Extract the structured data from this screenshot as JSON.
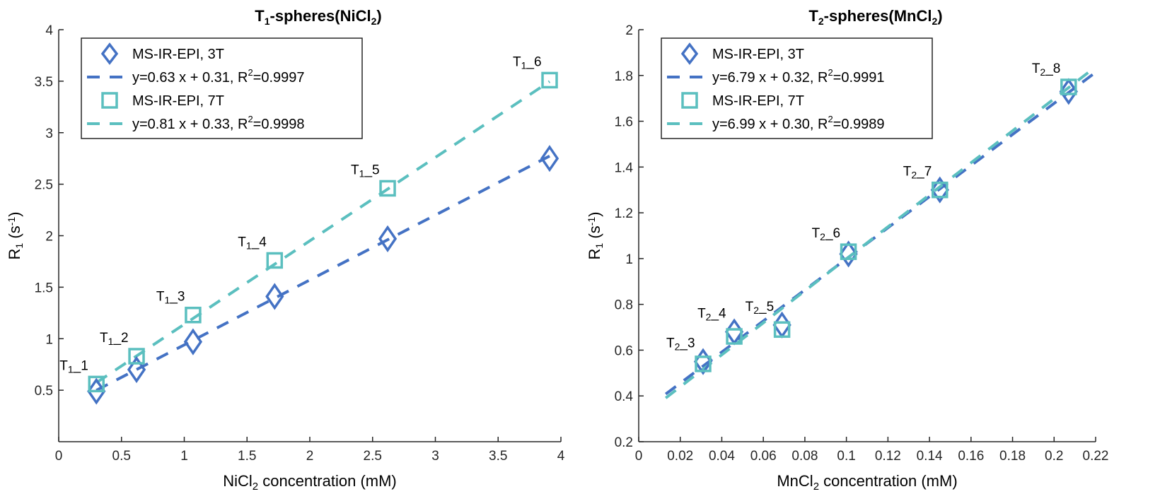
{
  "chart_data": [
    {
      "type": "scatter",
      "title": "T1-spheres(NiCl2)",
      "title_parts": {
        "pre": "T",
        "sub1": "1",
        "mid": "-spheres(NiCl",
        "sub2": "2",
        "post": ")"
      },
      "xlabel": "NiCl2 concentration (mM)",
      "xlabel_parts": {
        "pre": "NiCl",
        "sub": "2",
        "post": " concentration (mM)"
      },
      "ylabel": "R1 (s-1)",
      "ylabel_parts": {
        "pre": "R",
        "sub": "1",
        "mid": " (s",
        "sup": "-1",
        "post": ")"
      },
      "xlim": [
        0,
        4
      ],
      "ylim": [
        0,
        4
      ],
      "xticks": [
        0,
        0.5,
        1,
        1.5,
        2,
        2.5,
        3,
        3.5,
        4
      ],
      "xtick_labels": [
        "0",
        "0.5",
        "1",
        "1.5",
        "2",
        "2.5",
        "3",
        "3.5",
        "4"
      ],
      "yticks": [
        0.5,
        1,
        1.5,
        2,
        2.5,
        3,
        3.5,
        4
      ],
      "ytick_labels": [
        "0.5",
        "1",
        "1.5",
        "2",
        "2.5",
        "3",
        "3.5",
        "4"
      ],
      "grid": false,
      "legend_position": "top-left",
      "series": [
        {
          "name": "MS-IR-EPI, 3T",
          "marker": "diamond",
          "color": "#4472C4",
          "x": [
            0.3,
            0.62,
            1.07,
            1.72,
            2.62,
            3.91
          ],
          "y": [
            0.49,
            0.7,
            0.97,
            1.41,
            1.97,
            2.75
          ]
        },
        {
          "name": "MS-IR-EPI, 7T",
          "marker": "square",
          "color": "#5BBFBF",
          "x": [
            0.3,
            0.62,
            1.07,
            1.72,
            2.62,
            3.91
          ],
          "y": [
            0.56,
            0.83,
            1.23,
            1.76,
            2.46,
            3.51
          ]
        }
      ],
      "fits": [
        {
          "name": "y=0.63 x + 0.31, R2=0.9997",
          "label_pre": "y=0.63 x + 0.31, R",
          "label_sup": "2",
          "label_post": "=0.9997",
          "slope": 0.63,
          "intercept": 0.31,
          "r2": 0.9997,
          "x_range": [
            0.3,
            3.91
          ],
          "color": "#4472C4"
        },
        {
          "name": "y=0.81 x + 0.33, R2=0.9998",
          "label_pre": "y=0.81 x + 0.33, R",
          "label_sup": "2",
          "label_post": "=0.9998",
          "slope": 0.81,
          "intercept": 0.33,
          "r2": 0.9998,
          "x_range": [
            0.3,
            3.91
          ],
          "color": "#5BBFBF"
        }
      ],
      "annotations": [
        {
          "pre": "T",
          "sub": "1",
          "post": "_1",
          "x": 0.3,
          "y": 0.56
        },
        {
          "pre": "T",
          "sub": "1",
          "post": "_2",
          "x": 0.62,
          "y": 0.83
        },
        {
          "pre": "T",
          "sub": "1",
          "post": "_3",
          "x": 1.07,
          "y": 1.23
        },
        {
          "pre": "T",
          "sub": "1",
          "post": "_4",
          "x": 1.72,
          "y": 1.76
        },
        {
          "pre": "T",
          "sub": "1",
          "post": "_5",
          "x": 2.62,
          "y": 2.46
        },
        {
          "pre": "T",
          "sub": "1",
          "post": "_6",
          "x": 3.91,
          "y": 3.51
        }
      ]
    },
    {
      "type": "scatter",
      "title": "T2-spheres(MnCl2)",
      "title_parts": {
        "pre": "T",
        "sub1": "2",
        "mid": "-spheres(MnCl",
        "sub2": "2",
        "post": ")"
      },
      "xlabel": "MnCl2 concentration (mM)",
      "xlabel_parts": {
        "pre": "MnCl",
        "sub": "2",
        "post": " concentration (mM)"
      },
      "ylabel": "R1 (s-1)",
      "ylabel_parts": {
        "pre": "R",
        "sub": "1",
        "mid": " (s",
        "sup": "-1",
        "post": ")"
      },
      "xlim": [
        0,
        0.22
      ],
      "ylim": [
        0.2,
        2
      ],
      "xticks": [
        0,
        0.02,
        0.04,
        0.06,
        0.08,
        0.1,
        0.12,
        0.14,
        0.16,
        0.18,
        0.2,
        0.22
      ],
      "xtick_labels": [
        "0",
        "0.02",
        "0.04",
        "0.06",
        "0.08",
        "0.1",
        "0.12",
        "0.14",
        "0.16",
        "0.18",
        "0.2",
        "0.22"
      ],
      "yticks": [
        0.2,
        0.4,
        0.6,
        0.8,
        1,
        1.2,
        1.4,
        1.6,
        1.8,
        2
      ],
      "ytick_labels": [
        "0.2",
        "0.4",
        "0.6",
        "0.8",
        "1",
        "1.2",
        "1.4",
        "1.6",
        "1.8",
        "2"
      ],
      "grid": false,
      "legend_position": "top-left",
      "series": [
        {
          "name": "MS-IR-EPI, 3T",
          "marker": "diamond",
          "color": "#4472C4",
          "x": [
            0.031,
            0.046,
            0.069,
            0.101,
            0.145,
            0.207
          ],
          "y": [
            0.55,
            0.68,
            0.71,
            1.02,
            1.3,
            1.73
          ]
        },
        {
          "name": "MS-IR-EPI, 7T",
          "marker": "square",
          "color": "#5BBFBF",
          "x": [
            0.031,
            0.046,
            0.069,
            0.101,
            0.145,
            0.207
          ],
          "y": [
            0.54,
            0.66,
            0.69,
            1.03,
            1.3,
            1.75
          ]
        }
      ],
      "fits": [
        {
          "name": "y=6.79 x + 0.32, R2=0.9991",
          "label_pre": "y=6.79 x + 0.32, R",
          "label_sup": "2",
          "label_post": "=0.9991",
          "slope": 6.79,
          "intercept": 0.32,
          "r2": 0.9991,
          "x_range": [
            0.013,
            0.22
          ],
          "color": "#4472C4"
        },
        {
          "name": "y=6.99 x + 0.30, R2=0.9989",
          "label_pre": "y=6.99 x + 0.30, R",
          "label_sup": "2",
          "label_post": "=0.9989",
          "slope": 6.99,
          "intercept": 0.3,
          "r2": 0.9989,
          "x_range": [
            0.013,
            0.22
          ],
          "color": "#5BBFBF"
        }
      ],
      "annotations": [
        {
          "pre": "T",
          "sub": "2",
          "post": "_3",
          "x": 0.031,
          "y": 0.55
        },
        {
          "pre": "T",
          "sub": "2",
          "post": "_4",
          "x": 0.046,
          "y": 0.68
        },
        {
          "pre": "T",
          "sub": "2",
          "post": "_5",
          "x": 0.069,
          "y": 0.71
        },
        {
          "pre": "T",
          "sub": "2",
          "post": "_6",
          "x": 0.101,
          "y": 1.03
        },
        {
          "pre": "T",
          "sub": "2",
          "post": "_7",
          "x": 0.145,
          "y": 1.3
        },
        {
          "pre": "T",
          "sub": "2",
          "post": "_8",
          "x": 0.207,
          "y": 1.75
        }
      ]
    }
  ]
}
